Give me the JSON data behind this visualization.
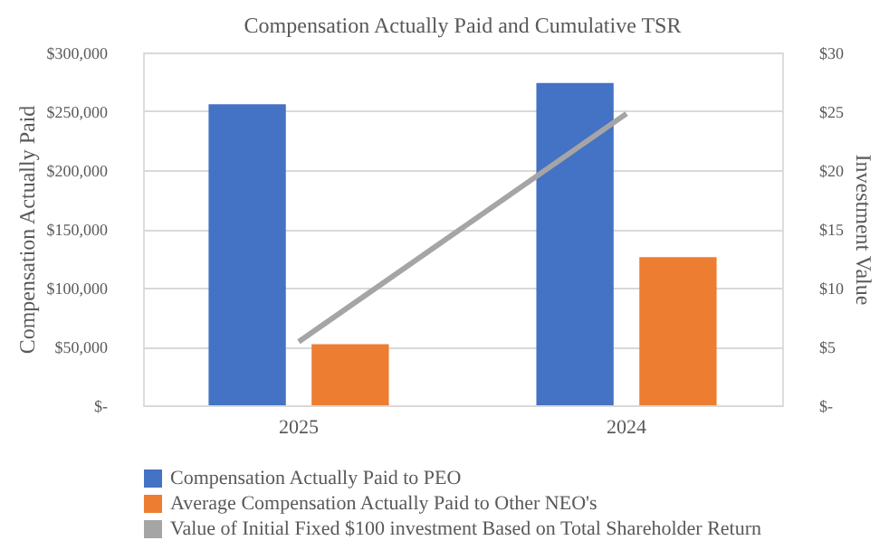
{
  "chart_data": {
    "type": "bar",
    "title": "Compensation Actually Paid and Cumulative TSR",
    "ylabel": "Compensation Actually Paid",
    "y2label": "Investment Value",
    "categories": [
      "2025",
      "2024"
    ],
    "series": [
      {
        "name": "Compensation Actually Paid to PEO",
        "color": "#4472c4",
        "values": [
          256000,
          274000
        ]
      },
      {
        "name": "Average Compensation Actually Paid to Other NEO's",
        "color": "#ed7d31",
        "values": [
          52000,
          126000
        ]
      },
      {
        "name": "Value of Initial Fixed $100 investment Based on Total Shareholder Return",
        "color": "#a5a5a5",
        "type": "line",
        "axis": "y2",
        "values": [
          5.4,
          24.8
        ]
      }
    ],
    "ylim": [
      0,
      300000
    ],
    "yticks": [
      {
        "value": 0,
        "label": "$-"
      },
      {
        "value": 50000,
        "label": "$50,000"
      },
      {
        "value": 100000,
        "label": "$100,000"
      },
      {
        "value": 150000,
        "label": "$150,000"
      },
      {
        "value": 200000,
        "label": "$200,000"
      },
      {
        "value": 250000,
        "label": "$250,000"
      },
      {
        "value": 300000,
        "label": "$300,000"
      }
    ],
    "y2lim": [
      0,
      30
    ],
    "y2ticks": [
      {
        "value": 0,
        "label": "$-"
      },
      {
        "value": 5,
        "label": "$5"
      },
      {
        "value": 10,
        "label": "$10"
      },
      {
        "value": 15,
        "label": "$15"
      },
      {
        "value": 20,
        "label": "$20"
      },
      {
        "value": 25,
        "label": "$25"
      },
      {
        "value": 30,
        "label": "$30"
      }
    ],
    "grid": "y",
    "legend": "bottom",
    "marker": "none"
  }
}
